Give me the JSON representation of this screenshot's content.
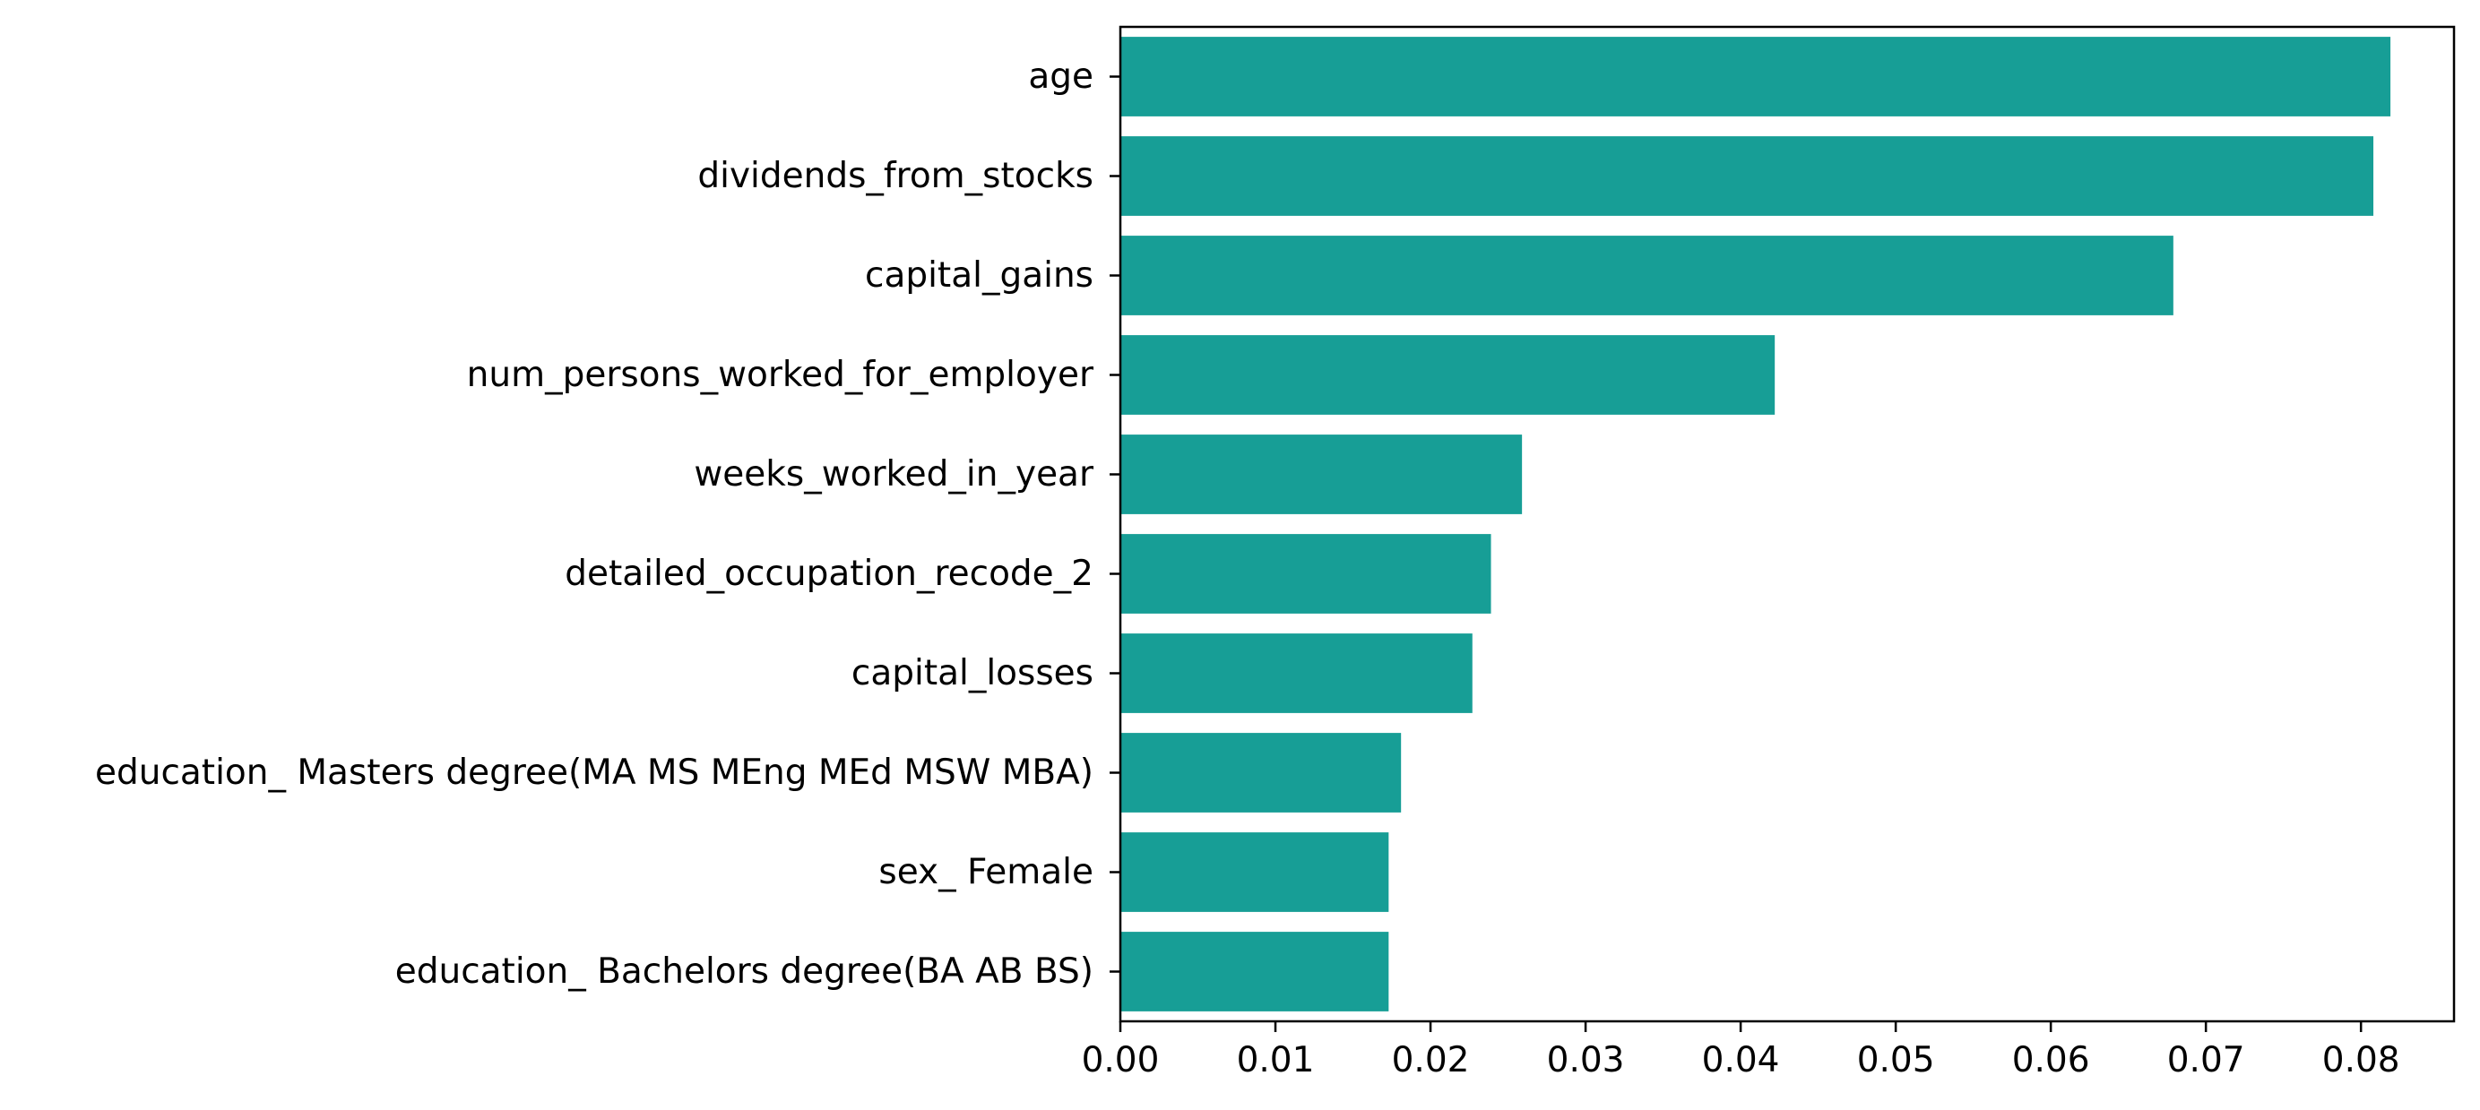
{
  "chart_data": {
    "type": "bar",
    "orientation": "horizontal",
    "title": "",
    "xlabel": "",
    "ylabel": "",
    "categories": [
      "age",
      "dividends_from_stocks",
      "capital_gains",
      "num_persons_worked_for_employer",
      "weeks_worked_in_year",
      "detailed_occupation_recode_2",
      "capital_losses",
      "education_ Masters degree(MA MS MEng MEd MSW MBA)",
      "sex_ Female",
      "education_ Bachelors degree(BA AB BS)"
    ],
    "values": [
      0.0819,
      0.0808,
      0.0679,
      0.0422,
      0.0259,
      0.0239,
      0.0227,
      0.0181,
      0.0173,
      0.0173
    ],
    "xlim": [
      0,
      0.086
    ],
    "xticks": [
      0.0,
      0.01,
      0.02,
      0.03,
      0.04,
      0.05,
      0.06,
      0.07,
      0.08
    ],
    "xtick_labels": [
      "0.00",
      "0.01",
      "0.02",
      "0.03",
      "0.04",
      "0.05",
      "0.06",
      "0.07",
      "0.08"
    ],
    "grid": false,
    "legend": "none",
    "bar_color": "#179e96"
  }
}
